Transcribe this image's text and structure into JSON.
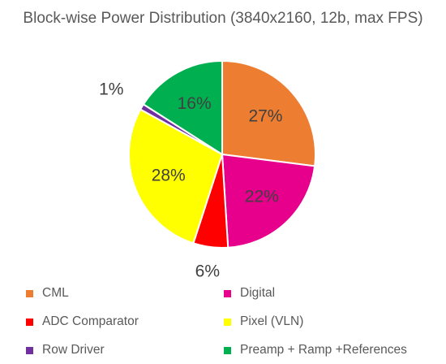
{
  "chart_data": {
    "type": "pie",
    "title": "Block-wise Power Distribution (3840x2160, 12b, max FPS)",
    "start_angle_deg": 0,
    "direction": "clockwise",
    "legend_position": "bottom",
    "slices": [
      {
        "name": "CML",
        "value": 27,
        "label": "27%",
        "color": "#ED7D31"
      },
      {
        "name": "Digital",
        "value": 22,
        "label": "22%",
        "color": "#E6008C"
      },
      {
        "name": "ADC Comparator",
        "value": 6,
        "label": "6%",
        "color": "#FF0000"
      },
      {
        "name": "Pixel (VLN)",
        "value": 28,
        "label": "28%",
        "color": "#FFFF00"
      },
      {
        "name": "Row Driver",
        "value": 1,
        "label": "1%",
        "color": "#7030A0"
      },
      {
        "name": "Preamp + Ramp +References",
        "value": 16,
        "label": "16%",
        "color": "#00B050"
      }
    ]
  }
}
